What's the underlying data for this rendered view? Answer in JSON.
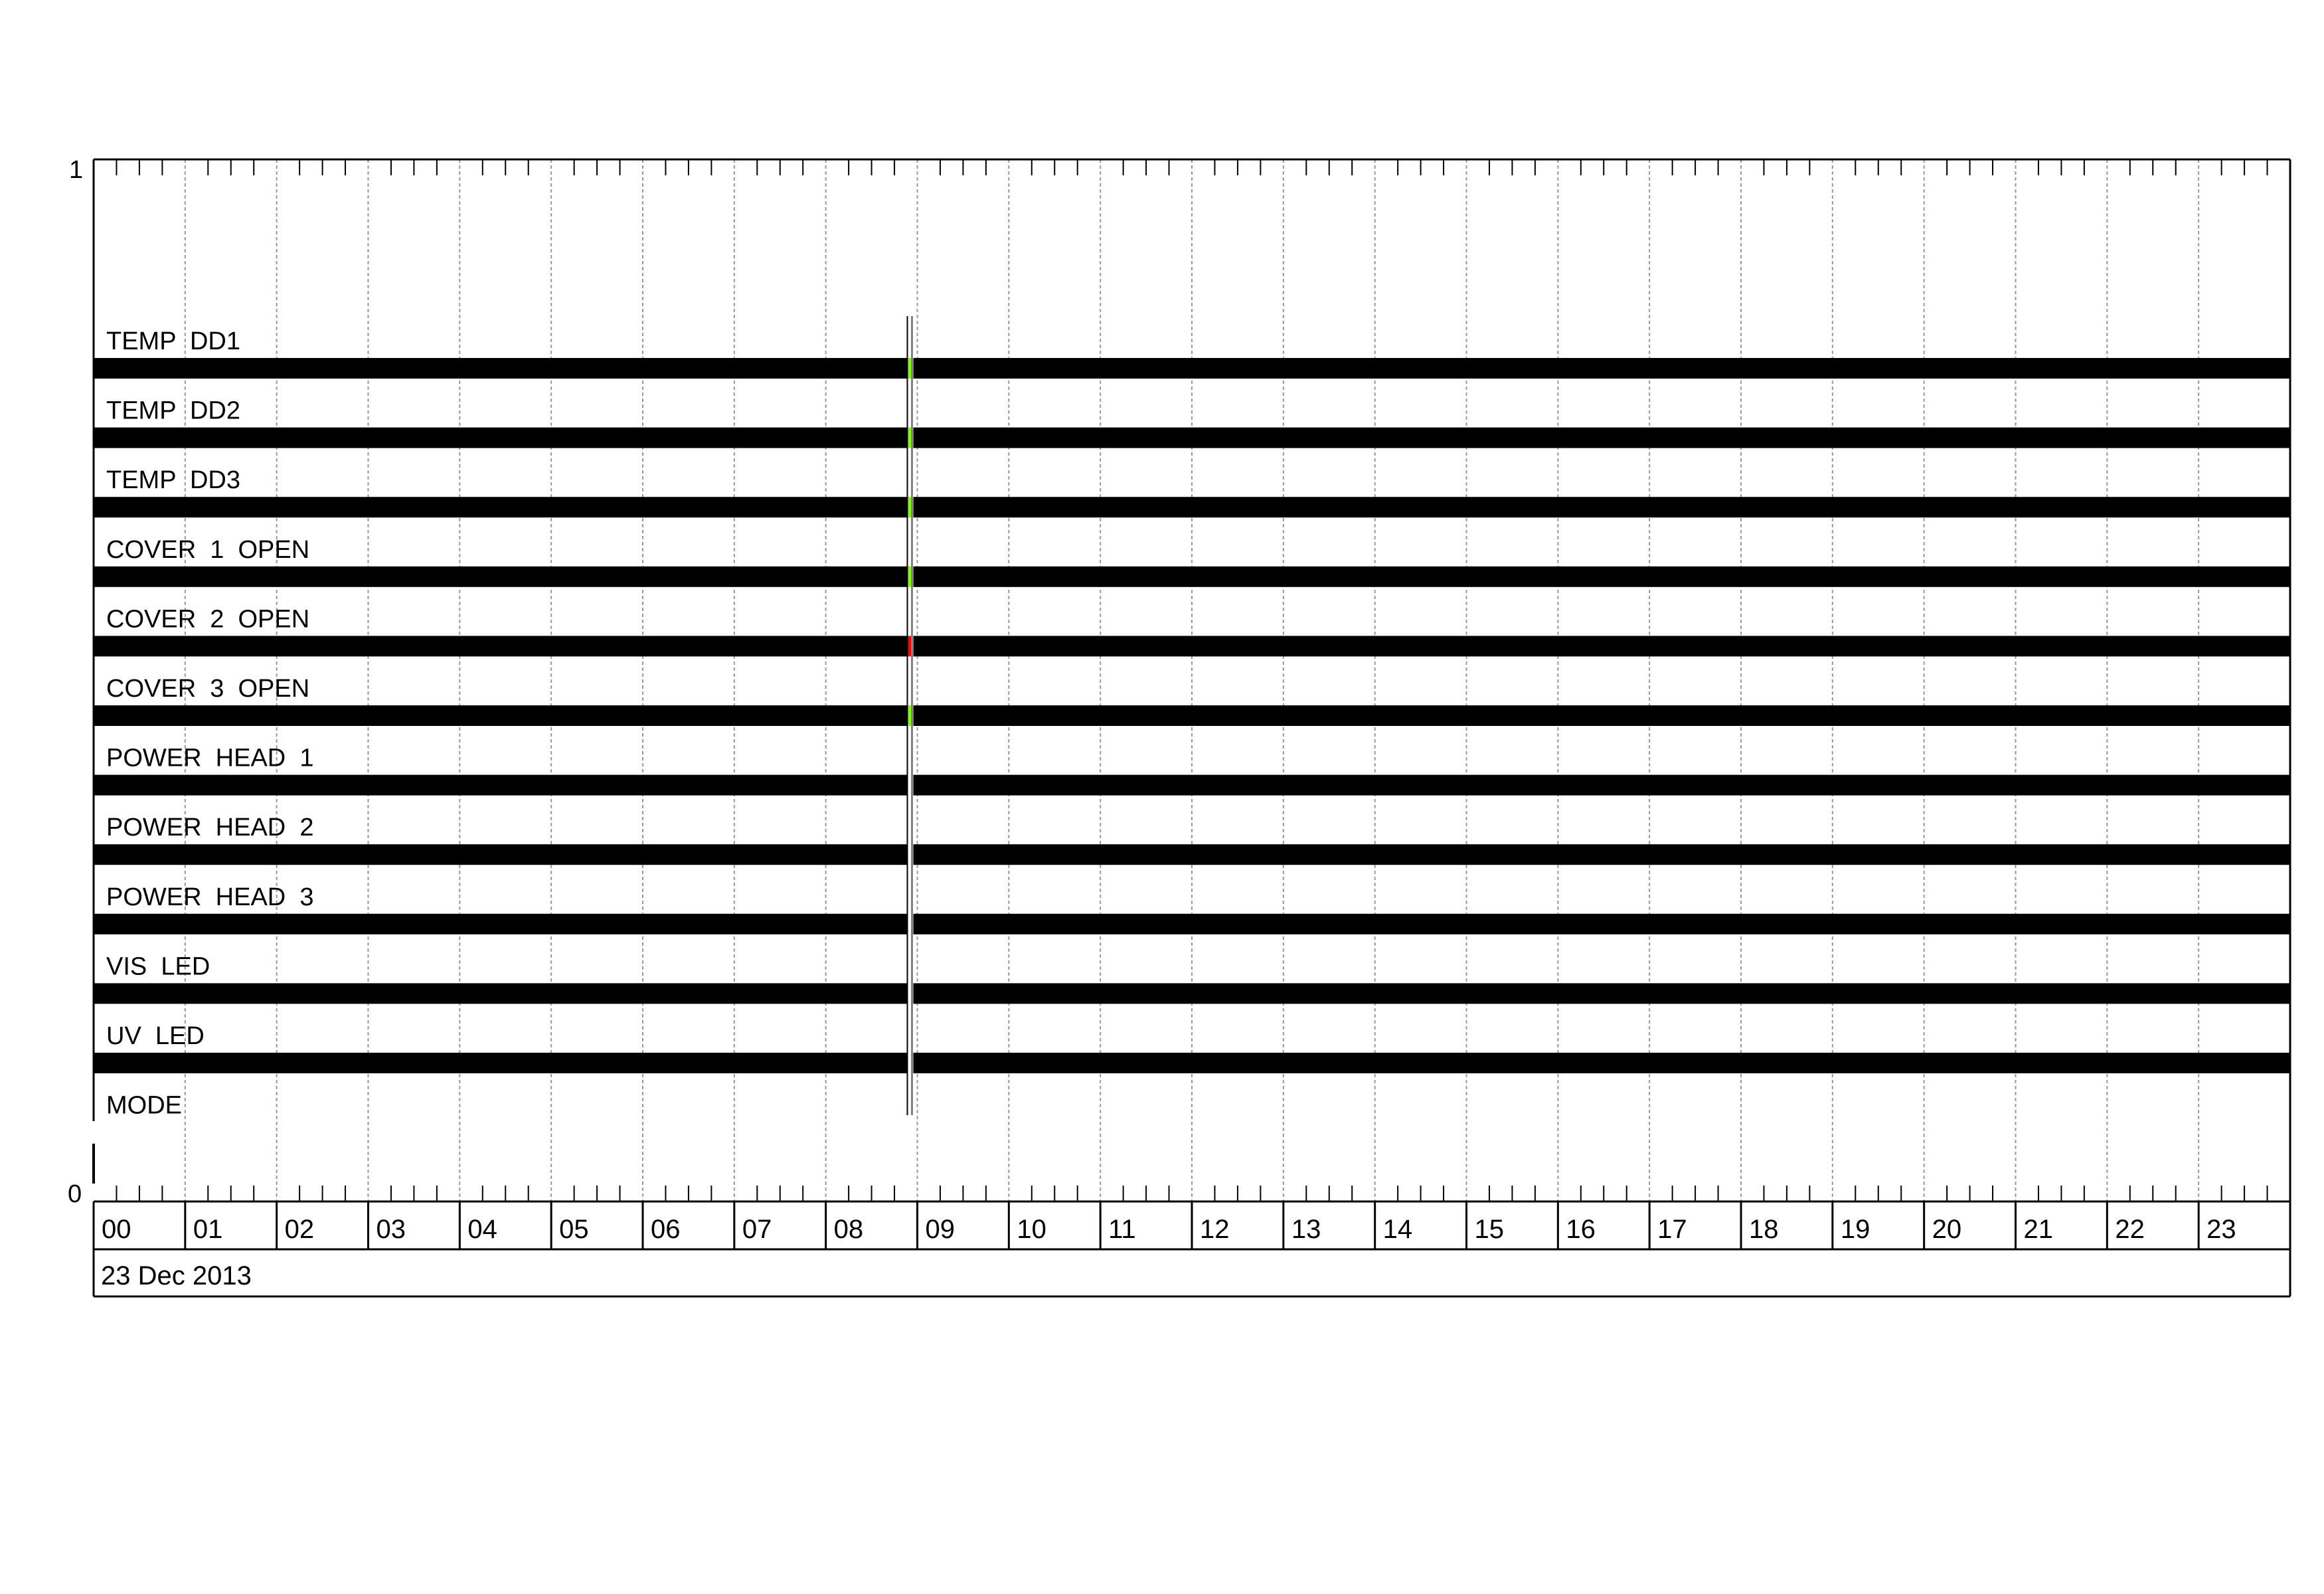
{
  "chart_data": {
    "type": "timeline",
    "y_axis": {
      "top_label": "1",
      "bottom_label": "0"
    },
    "x_axis": {
      "tick_labels": [
        "00",
        "01",
        "02",
        "03",
        "04",
        "05",
        "06",
        "07",
        "08",
        "09",
        "10",
        "11",
        "12",
        "13",
        "14",
        "15",
        "16",
        "17",
        "18",
        "19",
        "20",
        "21",
        "22",
        "23"
      ],
      "range_hours": [
        0,
        24
      ],
      "minor_ticks_per_hour": 3,
      "grid": true,
      "date_label": "23 Dec 2013"
    },
    "cursor_time_hours": 8.92,
    "channels": [
      {
        "name": "TEMP  DD1",
        "state": "on",
        "marker_color": "#80ff00"
      },
      {
        "name": "TEMP  DD2",
        "state": "on",
        "marker_color": "#80ff00"
      },
      {
        "name": "TEMP  DD3",
        "state": "on",
        "marker_color": "#80ff00"
      },
      {
        "name": "COVER  1  OPEN",
        "state": "on",
        "marker_color": "#80ff00"
      },
      {
        "name": "COVER  2  OPEN",
        "state": "on",
        "marker_color": "#ff0000"
      },
      {
        "name": "COVER  3  OPEN",
        "state": "on",
        "marker_color": "#80ff00"
      },
      {
        "name": "POWER  HEAD  1",
        "state": "on",
        "marker_color": null
      },
      {
        "name": "POWER  HEAD  2",
        "state": "on",
        "marker_color": null
      },
      {
        "name": "POWER  HEAD  3",
        "state": "on",
        "marker_color": null
      },
      {
        "name": "VIS  LED",
        "state": "on",
        "marker_color": null
      },
      {
        "name": "UV  LED",
        "state": "on",
        "marker_color": null
      },
      {
        "name": "MODE",
        "state": "none",
        "marker_color": null
      }
    ],
    "colors": {
      "bar": "#000000",
      "cursor": "#808080",
      "grid": "#999999"
    }
  }
}
